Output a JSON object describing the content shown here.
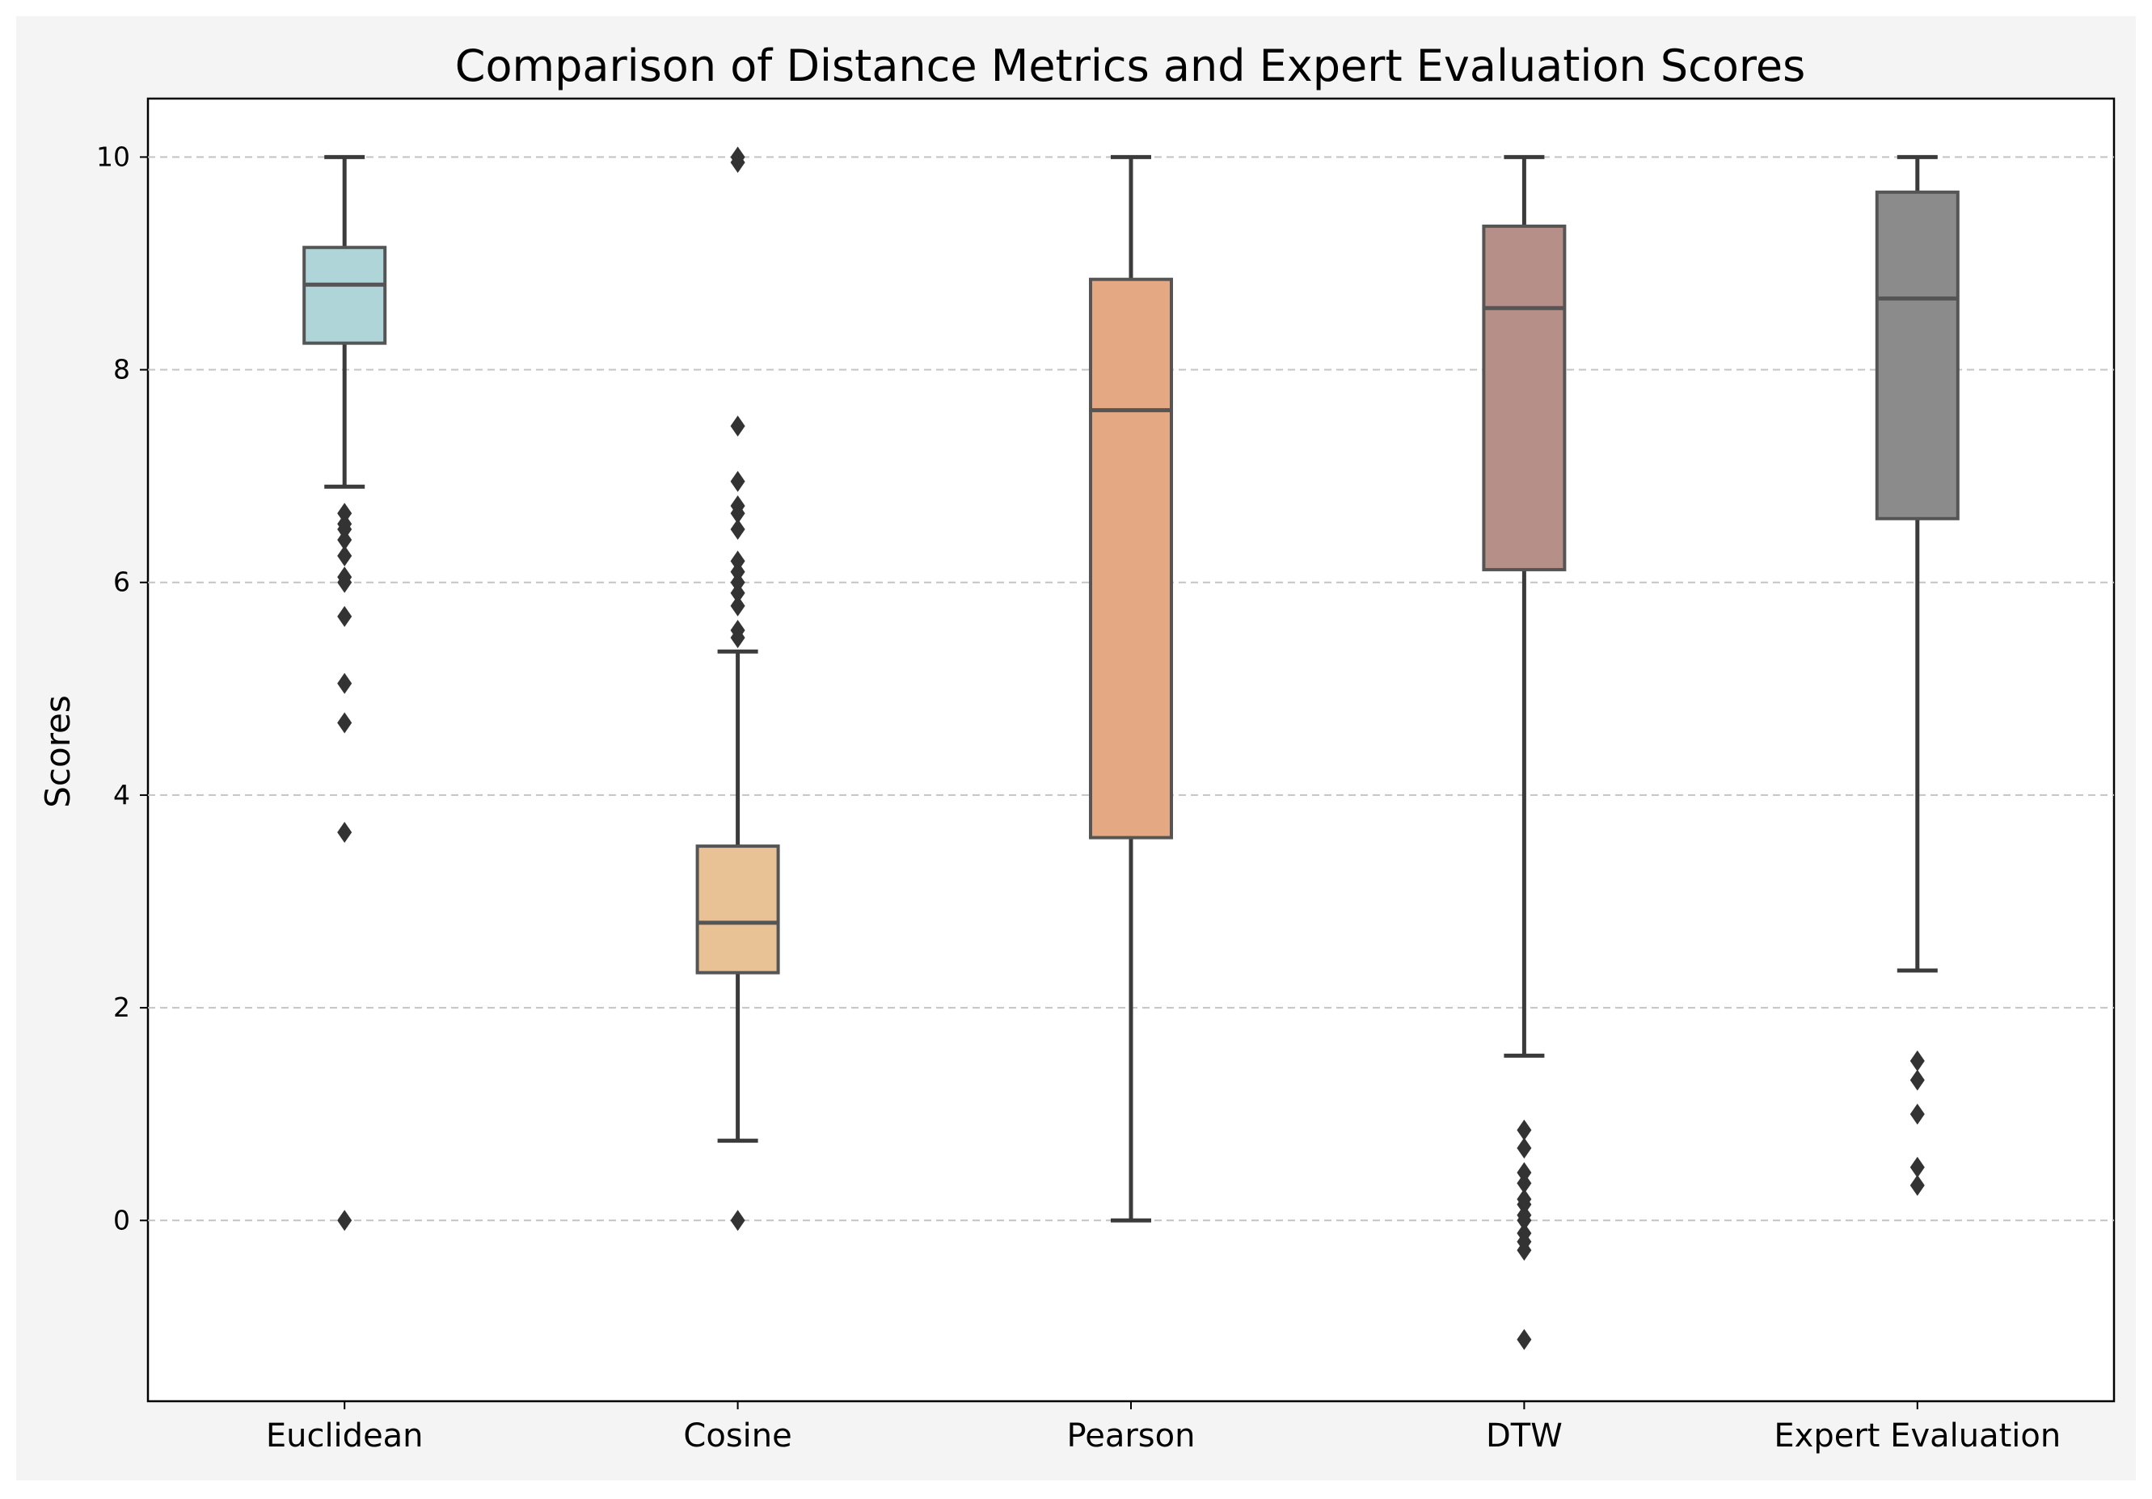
{
  "chart_data": {
    "type": "box",
    "title": "Comparison of Distance Metrics and Expert Evaluation Scores",
    "xlabel": "",
    "ylabel": "Scores",
    "ylim": [
      -1.7,
      10.55
    ],
    "yticks": [
      0,
      2,
      4,
      6,
      8,
      10
    ],
    "grid": "y-dashed",
    "categories": [
      "Euclidean",
      "Cosine",
      "Pearson",
      "DTW",
      "Expert Evaluation"
    ],
    "boxes": [
      {
        "name": "Euclidean",
        "color": "#b0d5d8",
        "whisker_low": 6.9,
        "q1": 8.25,
        "median": 8.8,
        "q3": 9.15,
        "whisker_high": 10.0,
        "outliers": [
          0.0,
          3.65,
          4.68,
          5.05,
          5.68,
          6.0,
          6.05,
          6.25,
          6.4,
          6.5,
          6.55,
          6.65
        ]
      },
      {
        "name": "Cosine",
        "color": "#e8c294",
        "whisker_low": 0.75,
        "q1": 2.33,
        "median": 2.8,
        "q3": 3.52,
        "whisker_high": 5.35,
        "outliers": [
          0.0,
          5.48,
          5.55,
          5.78,
          5.9,
          6.0,
          6.1,
          6.2,
          6.5,
          6.65,
          6.72,
          6.95,
          7.47,
          9.95,
          10.0
        ]
      },
      {
        "name": "Pearson",
        "color": "#e4a882",
        "whisker_low": 0.0,
        "q1": 3.6,
        "median": 7.62,
        "q3": 8.85,
        "whisker_high": 10.0,
        "outliers": []
      },
      {
        "name": "DTW",
        "color": "#b78f89",
        "whisker_low": 1.55,
        "q1": 6.12,
        "median": 8.58,
        "q3": 9.35,
        "whisker_high": 10.0,
        "outliers": [
          -1.12,
          -0.28,
          -0.2,
          -0.12,
          0.0,
          0.05,
          0.15,
          0.2,
          0.35,
          0.45,
          0.68,
          0.85
        ]
      },
      {
        "name": "Expert Evaluation",
        "color": "#8b8b8b",
        "whisker_low": 2.35,
        "q1": 6.6,
        "median": 8.67,
        "q3": 9.67,
        "whisker_high": 10.0,
        "outliers": [
          0.33,
          0.5,
          1.0,
          1.32,
          1.5
        ]
      }
    ]
  }
}
